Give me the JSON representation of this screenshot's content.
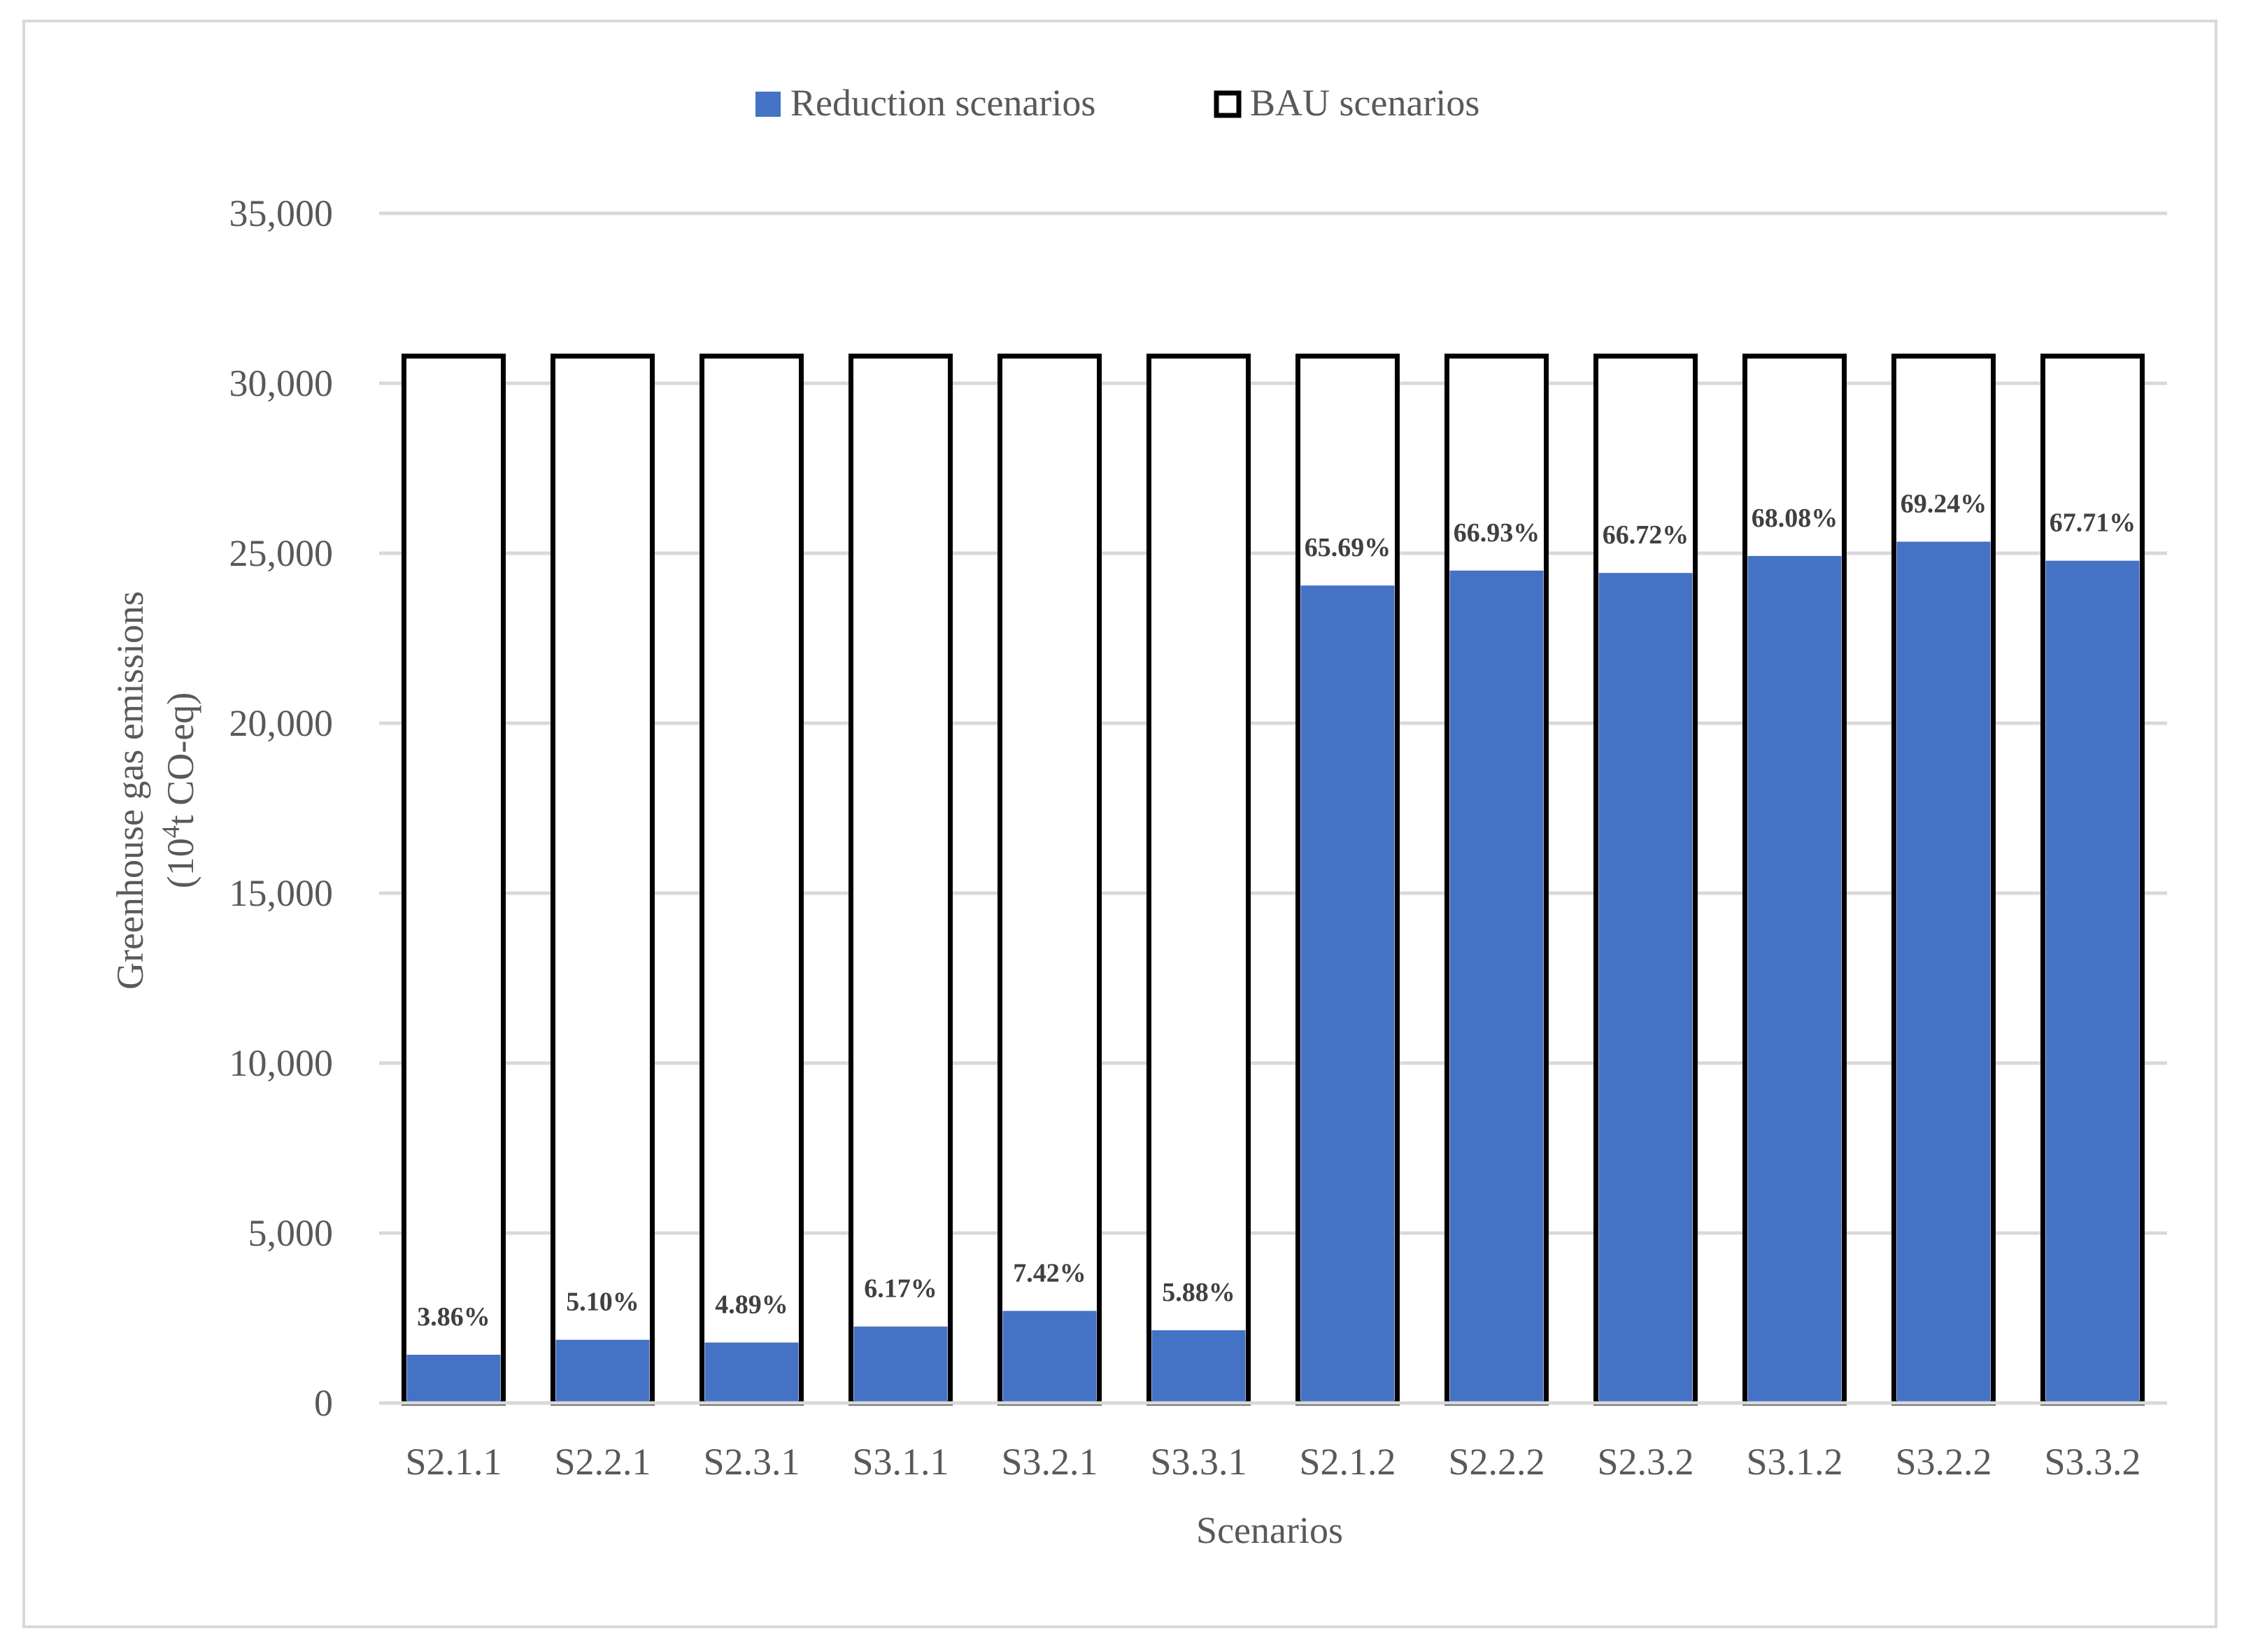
{
  "chart_data": {
    "type": "bar",
    "stacked": "overlay",
    "xlabel": "Scenarios",
    "ylabel": "Greenhouse gas emissions",
    "ylabel_unit_prefix": "(10",
    "ylabel_unit_sup": "4",
    "ylabel_unit_suffix": "t CO-eq)",
    "ylim": [
      0,
      35000
    ],
    "yticks": [
      0,
      5000,
      10000,
      15000,
      20000,
      25000,
      30000,
      35000
    ],
    "ytick_labels": [
      "0",
      "5,000",
      "10,000",
      "15,000",
      "20,000",
      "25,000",
      "30,000",
      "35,000"
    ],
    "grid": true,
    "legend_position": "top",
    "categories": [
      "S2.1.1",
      "S2.2.1",
      "S2.3.1",
      "S3.1.1",
      "S3.2.1",
      "S3.3.1",
      "S2.1.2",
      "S2.2.2",
      "S2.3.2",
      "S3.1.2",
      "S3.2.2",
      "S3.3.2"
    ],
    "series": [
      {
        "name": "Reduction scenarios",
        "color": "#4472c4",
        "values": [
          1420,
          1860,
          1780,
          2250,
          2710,
          2140,
          24050,
          24490,
          24420,
          24920,
          25340,
          24780
        ]
      },
      {
        "name": "BAU scenarios",
        "color": "#ffffff",
        "outline": "#000000",
        "values": [
          30800,
          30800,
          30800,
          30800,
          30800,
          30800,
          30800,
          30800,
          30800,
          30800,
          30800,
          30800
        ]
      }
    ],
    "data_labels": [
      "3.86%",
      "5.10%",
      "4.89%",
      "6.17%",
      "7.42%",
      "5.88%",
      "65.69%",
      "66.93%",
      "66.72%",
      "68.08%",
      "69.24%",
      "67.71%"
    ]
  }
}
